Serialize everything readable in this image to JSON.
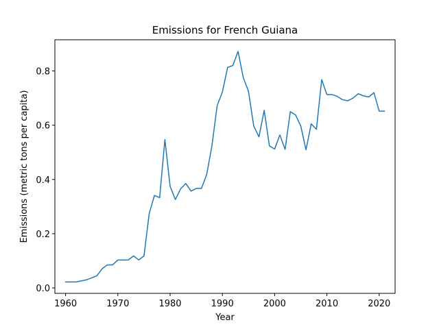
{
  "chart_data": {
    "type": "line",
    "title": "Emissions for French Guiana",
    "xlabel": "Year",
    "ylabel": "Emissions (metric tons per capita)",
    "xlim": [
      1957.95,
      2023.05
    ],
    "ylim": [
      -0.02,
      0.915
    ],
    "grid": false,
    "line_color": "#1f77b4",
    "x_ticks": [
      1960,
      1970,
      1980,
      1990,
      2000,
      2010,
      2020
    ],
    "y_ticks": [
      0.0,
      0.2,
      0.4,
      0.6,
      0.8
    ],
    "x_tick_labels": [
      "1960",
      "1970",
      "1980",
      "1990",
      "2000",
      "2010",
      "2020"
    ],
    "y_tick_labels": [
      "0.0",
      "0.2",
      "0.4",
      "0.6",
      "0.8"
    ],
    "series": [
      {
        "x": [
          1960,
          1961,
          1962,
          1963,
          1964,
          1965,
          1966,
          1967,
          1968,
          1969,
          1970,
          1971,
          1972,
          1973,
          1974,
          1975,
          1976,
          1977,
          1978,
          1979,
          1980,
          1981,
          1982,
          1983,
          1984,
          1985,
          1986,
          1987,
          1988,
          1989,
          1990,
          1991,
          1992,
          1993,
          1994,
          1995,
          1996,
          1997,
          1998,
          1999,
          2000,
          2001,
          2002,
          2003,
          2004,
          2005,
          2006,
          2007,
          2008,
          2009,
          2010,
          2011,
          2012,
          2013,
          2014,
          2015,
          2016,
          2017,
          2018,
          2019,
          2020,
          2021
        ],
        "values": [
          0.022,
          0.022,
          0.022,
          0.026,
          0.03,
          0.037,
          0.045,
          0.071,
          0.085,
          0.085,
          0.103,
          0.103,
          0.103,
          0.118,
          0.103,
          0.118,
          0.274,
          0.341,
          0.333,
          0.547,
          0.375,
          0.326,
          0.365,
          0.385,
          0.357,
          0.367,
          0.367,
          0.418,
          0.524,
          0.672,
          0.722,
          0.813,
          0.82,
          0.872,
          0.775,
          0.725,
          0.597,
          0.557,
          0.655,
          0.524,
          0.512,
          0.564,
          0.511,
          0.65,
          0.638,
          0.597,
          0.509,
          0.605,
          0.585,
          0.768,
          0.713,
          0.713,
          0.706,
          0.694,
          0.69,
          0.7,
          0.716,
          0.708,
          0.704,
          0.72,
          0.652,
          0.652
        ]
      }
    ]
  }
}
